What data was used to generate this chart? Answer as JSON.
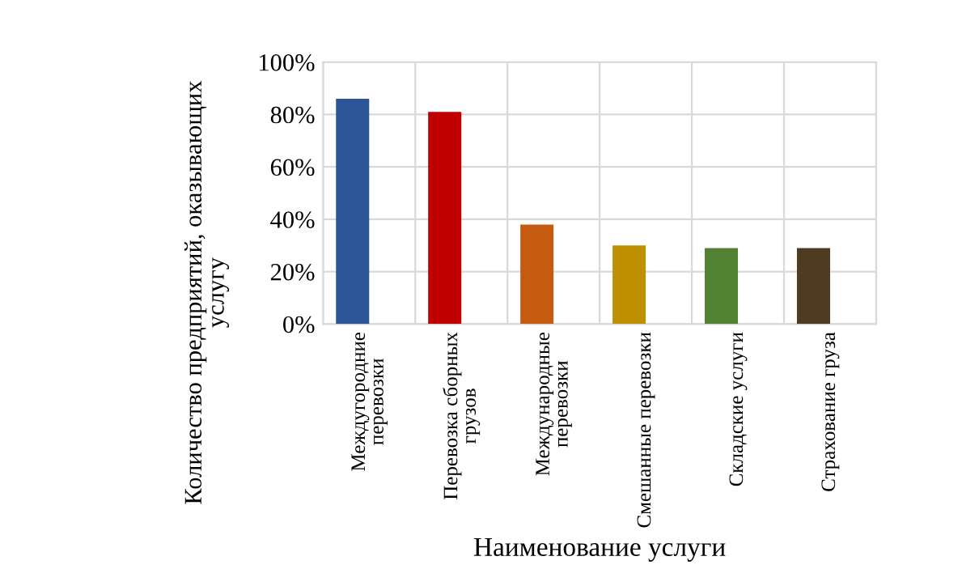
{
  "chart_data": {
    "type": "bar",
    "xlabel": "Наименование услуги",
    "ylabel": "Количество предприятий, оказывающих\nуслугу",
    "categories": [
      "Междугородние\nперевозки",
      "Перевозка сборных\nгрузов",
      "Международные\nперевозки",
      "Смешанные перевозки",
      "Складские услуги",
      "Страхование груза"
    ],
    "values": [
      86,
      81,
      38,
      30,
      29,
      29
    ],
    "colors": [
      "#2e5597",
      "#c00000",
      "#c55a11",
      "#bf9000",
      "#548235",
      "#4e3b22"
    ],
    "ylim": [
      0,
      100
    ],
    "yticks": [
      {
        "value": 0,
        "label": "0%"
      },
      {
        "value": 20,
        "label": "20%"
      },
      {
        "value": 40,
        "label": "40%"
      },
      {
        "value": 60,
        "label": "60%"
      },
      {
        "value": 80,
        "label": "80%"
      },
      {
        "value": 100,
        "label": "100%"
      }
    ],
    "grid": true
  }
}
